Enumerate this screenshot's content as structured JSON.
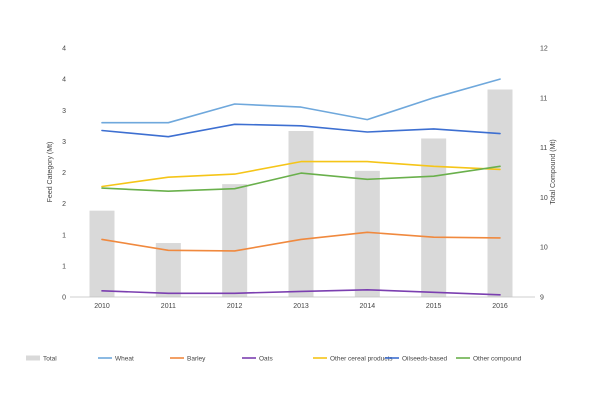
{
  "chart_data": {
    "type": "bar+line",
    "title": "",
    "x": [
      "2010",
      "2011",
      "2012",
      "2013",
      "2014",
      "2015",
      "2016"
    ],
    "left_axis": {
      "label": "Feed Category (Mt)",
      "ylim": [
        0,
        8
      ],
      "tick_labels": [
        "0",
        "1",
        "1",
        "2",
        "2",
        "3",
        "3",
        "4",
        "4"
      ]
    },
    "right_axis": {
      "label": "Total Compound (Mt)",
      "ylim": [
        9,
        12
      ],
      "tick_labels": [
        "9",
        "10",
        "10",
        "11",
        "11",
        "12"
      ]
    },
    "bar_series": {
      "name": "Total",
      "axis": "right",
      "color": "#d9d9d9",
      "values": [
        10.04,
        9.65,
        10.36,
        11.0,
        10.52,
        10.91,
        11.5
      ]
    },
    "series": [
      {
        "name": "Wheat",
        "axis": "left",
        "color": "#6fa8dc",
        "values": [
          5.6,
          5.6,
          6.2,
          6.1,
          5.7,
          6.4,
          7.0
        ]
      },
      {
        "name": "Barley",
        "axis": "left",
        "color": "#f0893e",
        "values": [
          1.85,
          1.5,
          1.48,
          1.85,
          2.08,
          1.92,
          1.9
        ]
      },
      {
        "name": "Oats",
        "axis": "left",
        "color": "#7b3fb0",
        "values": [
          0.2,
          0.12,
          0.12,
          0.18,
          0.23,
          0.15,
          0.07
        ]
      },
      {
        "name": "Other cereal products",
        "axis": "left",
        "color": "#f5c518",
        "values": [
          3.55,
          3.85,
          3.95,
          4.35,
          4.35,
          4.2,
          4.1
        ]
      },
      {
        "name": "Oilseeds-based",
        "axis": "left",
        "color": "#3d6fd1",
        "values": [
          5.35,
          5.15,
          5.55,
          5.5,
          5.3,
          5.4,
          5.25
        ]
      },
      {
        "name": "Other compound",
        "axis": "left",
        "color": "#6ab04c",
        "values": [
          3.5,
          3.4,
          3.48,
          3.98,
          3.78,
          3.88,
          4.2
        ]
      }
    ],
    "grid": false,
    "legend_position": "bottom"
  }
}
